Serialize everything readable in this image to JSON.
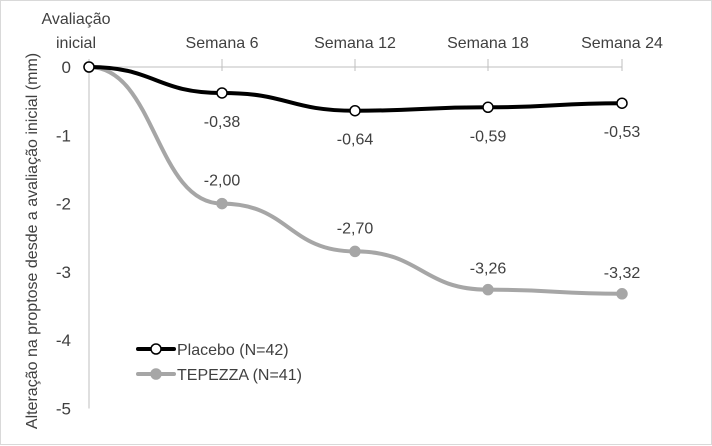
{
  "chart_data": {
    "type": "line",
    "categories": [
      [
        "Avaliação",
        "inicial"
      ],
      [
        "Semana 6"
      ],
      [
        "Semana 12"
      ],
      [
        "Semana 18"
      ],
      [
        "Semana 24"
      ]
    ],
    "ylabel": "Alteração na proptose desde a avaliação inicial (mm)",
    "ylim": [
      -5,
      0
    ],
    "yticks": [
      0,
      -1,
      -2,
      -3,
      -4,
      -5
    ],
    "ytick_labels": [
      "0",
      "-1",
      "-2",
      "-3",
      "-4",
      "-5"
    ],
    "legend_position": "bottom-left",
    "series": [
      {
        "name": "Placebo (N=42)",
        "color": "#000000",
        "marker": "open-circle",
        "values": [
          0,
          -0.38,
          -0.64,
          -0.59,
          -0.53
        ],
        "labels": [
          "",
          "-0,38",
          "-0,64",
          "-0,59",
          "-0,53"
        ]
      },
      {
        "name": "TEPEZZA (N=41)",
        "color": "#a6a6a6",
        "marker": "filled-circle",
        "values": [
          0,
          -2.0,
          -2.7,
          -3.26,
          -3.32
        ],
        "labels": [
          "",
          "-2,00",
          "-2,70",
          "-3,26",
          "-3,32"
        ]
      }
    ]
  }
}
